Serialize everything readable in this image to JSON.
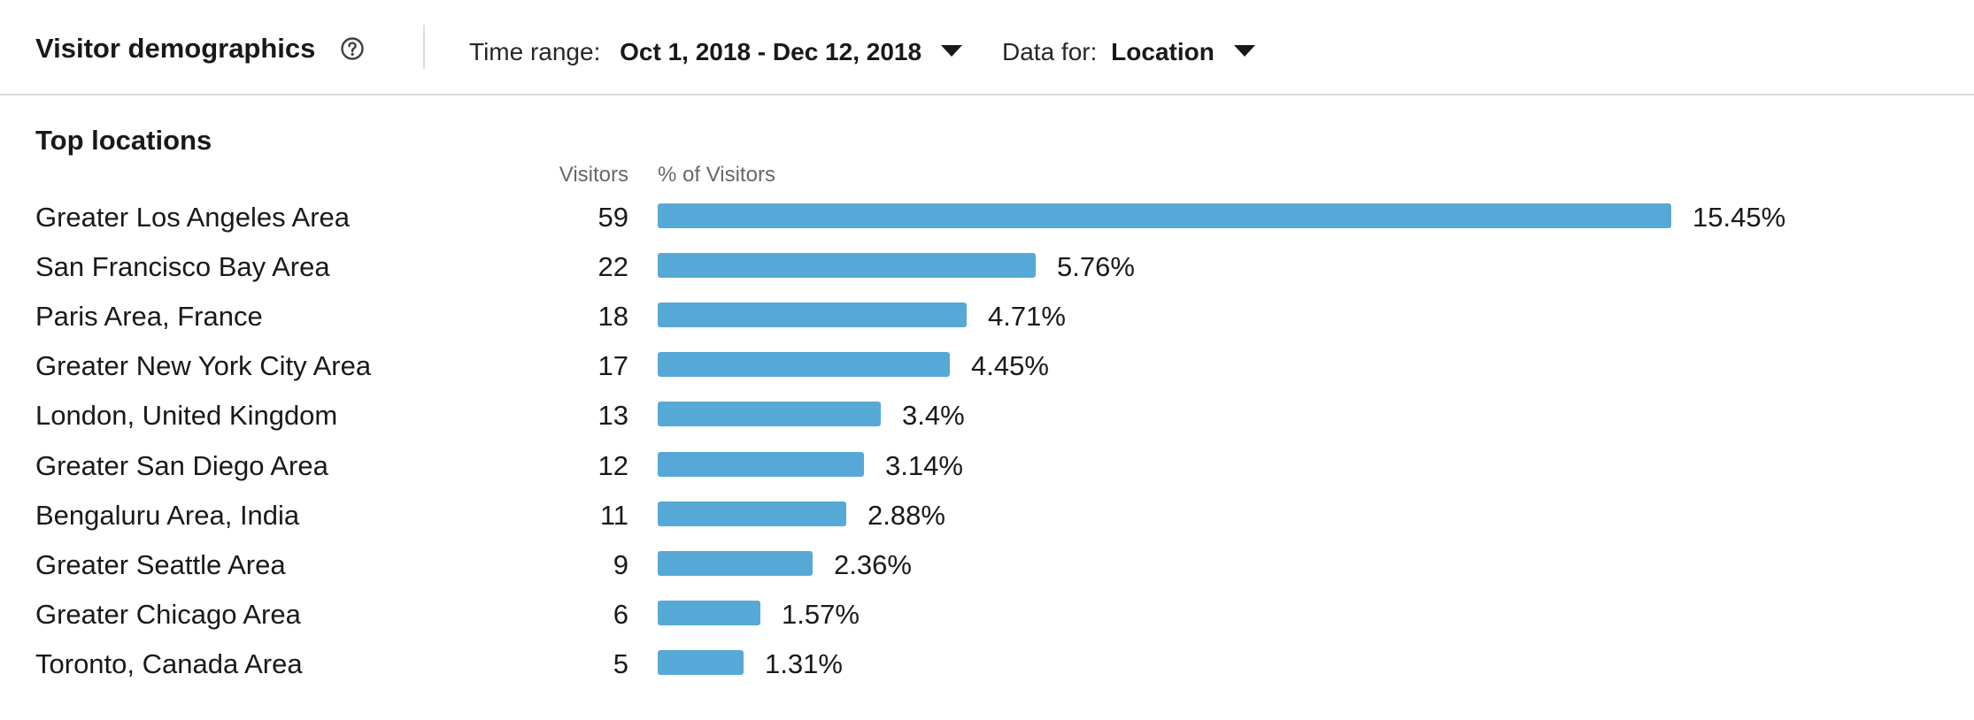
{
  "header": {
    "title": "Visitor demographics",
    "help_icon": "question-circle-icon",
    "time_range_label": "Time range:",
    "time_range_value": "Oct 1, 2018 - Dec 12, 2018",
    "data_for_label": "Data for:",
    "data_for_value": "Location"
  },
  "section": {
    "title": "Top locations",
    "col_visitors": "Visitors",
    "col_percent": "% of Visitors"
  },
  "colors": {
    "bar": "#56a8d6"
  },
  "chart_data": {
    "type": "bar",
    "orientation": "horizontal",
    "categories": [
      "Greater Los Angeles Area",
      "San Francisco Bay Area",
      "Paris Area, France",
      "Greater New York City Area",
      "London, United Kingdom",
      "Greater San Diego Area",
      "Bengaluru Area, India",
      "Greater Seattle Area",
      "Greater Chicago Area",
      "Toronto, Canada Area"
    ],
    "visitors": [
      59,
      22,
      18,
      17,
      13,
      12,
      11,
      9,
      6,
      5
    ],
    "percent_values": [
      15.45,
      5.76,
      4.71,
      4.45,
      3.4,
      3.14,
      2.88,
      2.36,
      1.57,
      1.31
    ],
    "percent_labels": [
      "15.45%",
      "5.76%",
      "4.71%",
      "4.45%",
      "3.4%",
      "3.14%",
      "2.88%",
      "2.36%",
      "1.57%",
      "1.31%"
    ]
  }
}
